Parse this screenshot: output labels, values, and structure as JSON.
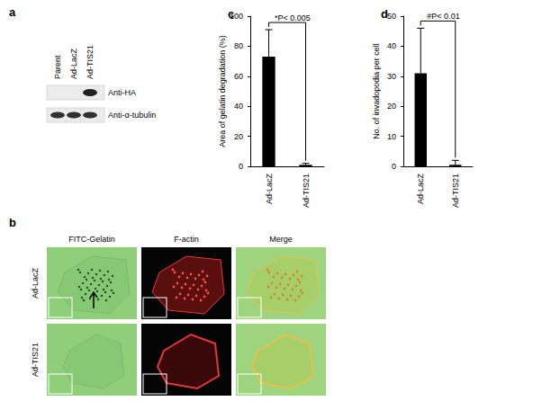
{
  "blot": {
    "label": "a",
    "lanes": [
      "Parent",
      "Ad-LacZ",
      "Ad-TIS21"
    ],
    "rows": [
      "Anti-HA",
      "Anti-α-tubulin"
    ]
  },
  "micrographs": {
    "label": "b",
    "columns": [
      "FITC-Gelatin",
      "F-actin",
      "Merge"
    ],
    "rows": [
      "Ad-LacZ",
      "Ad-TIS21"
    ]
  },
  "chart_data": [
    {
      "type": "bar",
      "title": "c",
      "categories": [
        "Ad-LacZ",
        "Ad-TIS21"
      ],
      "values": [
        73,
        1
      ],
      "errors": [
        18,
        1
      ],
      "color": "#000000",
      "ylabel": "Area of gelatin degradation (%)",
      "ylim": [
        0,
        100
      ],
      "yticks": [
        0,
        20,
        40,
        60,
        80,
        100
      ],
      "annotation": "*P< 0.005"
    },
    {
      "type": "bar",
      "title": "d",
      "categories": [
        "Ad-LacZ",
        "Ad-TIS21"
      ],
      "values": [
        31,
        0.5
      ],
      "errors": [
        15,
        1.5
      ],
      "color": "#000000",
      "ylabel": "No. of invadopodia per cell",
      "ylim": [
        0,
        50
      ],
      "yticks": [
        0,
        10,
        20,
        30,
        40,
        50
      ],
      "annotation": "#P< 0.01"
    }
  ]
}
